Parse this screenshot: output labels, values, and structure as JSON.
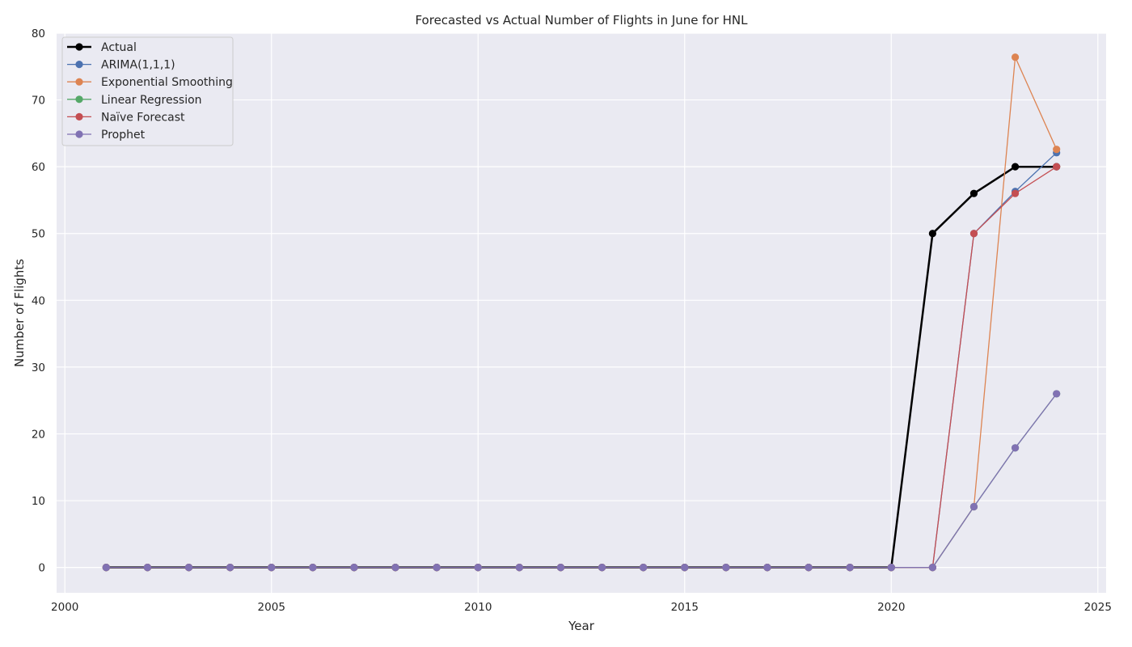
{
  "chart_data": {
    "type": "line",
    "title": "Forecasted vs Actual Number of Flights in June for HNL",
    "xlabel": "Year",
    "ylabel": "Number of Flights",
    "xlim": [
      1999.8,
      2025.2
    ],
    "ylim": [
      -3.8,
      80.0
    ],
    "x_ticks": [
      2000,
      2005,
      2010,
      2015,
      2020,
      2025
    ],
    "y_ticks": [
      0,
      10,
      20,
      30,
      40,
      50,
      60,
      70,
      80
    ],
    "grid": true,
    "legend_position": "top-left",
    "x": [
      2001,
      2002,
      2003,
      2004,
      2005,
      2006,
      2007,
      2008,
      2009,
      2010,
      2011,
      2012,
      2013,
      2014,
      2015,
      2016,
      2017,
      2018,
      2019,
      2020,
      2021,
      2022,
      2023,
      2024
    ],
    "series": [
      {
        "name": "Actual",
        "color": "#000000",
        "bold": true,
        "values": [
          0,
          0,
          0,
          0,
          0,
          0,
          0,
          0,
          0,
          0,
          0,
          0,
          0,
          0,
          0,
          0,
          0,
          0,
          0,
          0,
          50,
          56,
          60,
          60
        ]
      },
      {
        "name": "ARIMA(1,1,1)",
        "color": "#4c72b0",
        "values": [
          0,
          0,
          0,
          0,
          0,
          0,
          0,
          0,
          0,
          0,
          0,
          0,
          0,
          0,
          0,
          0,
          0,
          0,
          0,
          0,
          0,
          50,
          56.3,
          62.1
        ]
      },
      {
        "name": "Exponential Smoothing",
        "color": "#dd8452",
        "values": [
          0,
          0,
          0,
          0,
          0,
          0,
          0,
          0,
          0,
          0,
          0,
          0,
          0,
          0,
          0,
          0,
          0,
          0,
          0,
          0,
          0,
          9.1,
          76.4,
          62.6
        ]
      },
      {
        "name": "Linear Regression",
        "color": "#55a868",
        "values": [
          0,
          0,
          0,
          0,
          0,
          0,
          0,
          0,
          0,
          0,
          0,
          0,
          0,
          0,
          0,
          0,
          0,
          0,
          0,
          0,
          0,
          9.1,
          17.9,
          26.0
        ]
      },
      {
        "name": "Naïve Forecast",
        "color": "#c44e52",
        "values": [
          0,
          0,
          0,
          0,
          0,
          0,
          0,
          0,
          0,
          0,
          0,
          0,
          0,
          0,
          0,
          0,
          0,
          0,
          0,
          0,
          0,
          50,
          56,
          60
        ]
      },
      {
        "name": "Prophet",
        "color": "#8172b3",
        "values": [
          0,
          0,
          0,
          0,
          0,
          0,
          0,
          0,
          0,
          0,
          0,
          0,
          0,
          0,
          0,
          0,
          0,
          0,
          0,
          0,
          0,
          9.1,
          17.9,
          26.0
        ]
      }
    ]
  }
}
